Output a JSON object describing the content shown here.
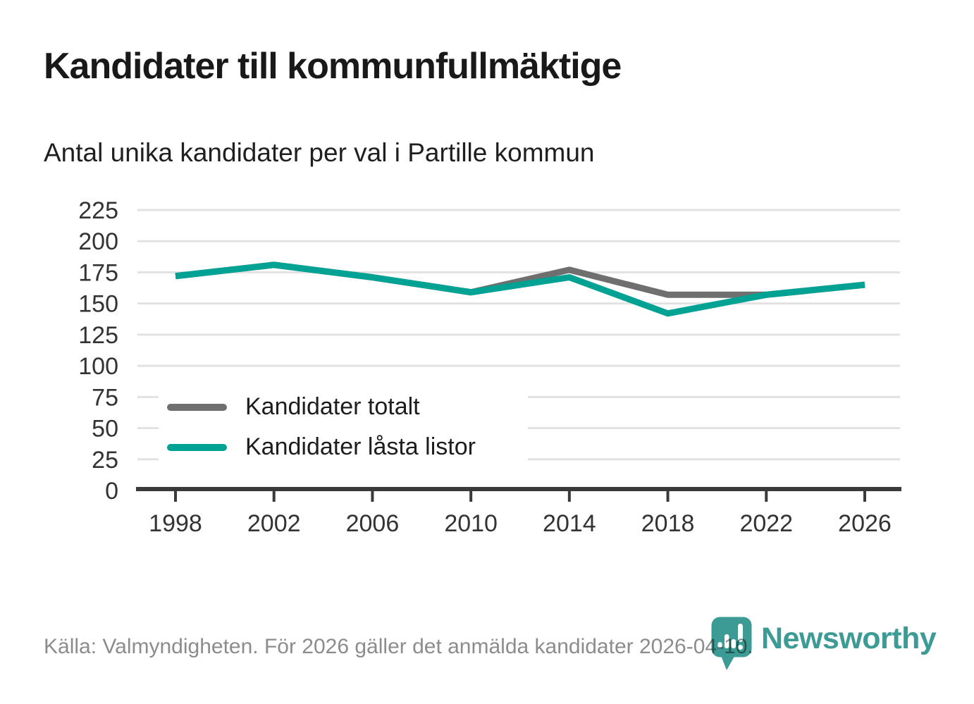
{
  "header": {
    "title": "Kandidater till kommunfullmäktige",
    "subtitle": "Antal unika kandidater per val i Partille kommun"
  },
  "chart_data": {
    "type": "line",
    "title": "Kandidater till kommunfullmäktige",
    "subtitle": "Antal unika kandidater per val i Partille kommun",
    "x": [
      1998,
      2002,
      2006,
      2010,
      2014,
      2018,
      2022,
      2026
    ],
    "series": [
      {
        "name": "Kandidater totalt",
        "color": "#6f6f6f",
        "values": [
          172,
          181,
          171,
          159,
          177,
          157,
          157,
          165
        ]
      },
      {
        "name": "Kandidater låsta listor",
        "color": "#00a294",
        "values": [
          172,
          181,
          171,
          159,
          171,
          142,
          157,
          165
        ]
      }
    ],
    "xlabel": "",
    "ylabel": "",
    "ylim": [
      0,
      225
    ],
    "yticks": [
      0,
      25,
      50,
      75,
      100,
      125,
      150,
      175,
      200,
      225
    ],
    "grid": true,
    "legend_position": "inside-bottom-left"
  },
  "footer": {
    "source": "Källa: Valmyndigheten. För 2026 gäller det anmälda kandidater 2026-04-10.",
    "brand": "Newsworthy"
  },
  "colors": {
    "series_total": "#6f6f6f",
    "series_locked": "#00a294",
    "logo_teal": "#3d9b95",
    "gridline": "#e2e2e2",
    "axis": "#3a3a3a",
    "source_text": "#8c8c8c"
  }
}
